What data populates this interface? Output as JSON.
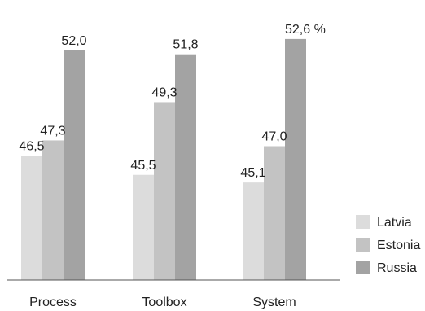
{
  "chart_data": {
    "type": "bar",
    "categories": [
      "Process",
      "Toolbox",
      "System"
    ],
    "series": [
      {
        "name": "Latvia",
        "color": "#dcdcdc",
        "values": [
          46.5,
          45.5,
          45.1
        ],
        "labels": [
          "46,5",
          "45,5",
          "45,1"
        ]
      },
      {
        "name": "Estonia",
        "color": "#c3c3c3",
        "values": [
          47.3,
          49.3,
          47.0
        ],
        "labels": [
          "47,3",
          "49,3",
          "47,0"
        ]
      },
      {
        "name": "Russia",
        "color": "#a3a3a3",
        "values": [
          52.0,
          51.8,
          52.6
        ],
        "labels": [
          "52,0",
          "51,8",
          "52,6 %"
        ]
      }
    ],
    "ylim": [
      40,
      53.5
    ],
    "grid": false,
    "legend_position": "bottom-right"
  }
}
